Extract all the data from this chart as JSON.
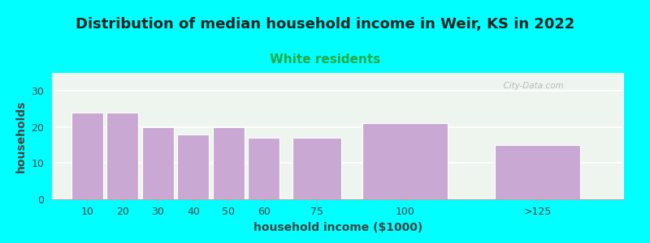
{
  "title": "Distribution of median household income in Weir, KS in 2022",
  "subtitle": "White residents",
  "xlabel": "household income ($1000)",
  "ylabel": "households",
  "categories": [
    "10",
    "20",
    "30",
    "40",
    "50",
    "60",
    "75",
    "100",
    ">125"
  ],
  "values": [
    24,
    24,
    20,
    18,
    20,
    17,
    17,
    21,
    15
  ],
  "bar_color": "#C9A8D4",
  "bg_color": "#00FFFF",
  "plot_bg_color": "#EEF5EE",
  "ylim": [
    0,
    35
  ],
  "yticks": [
    0,
    10,
    20,
    30
  ],
  "title_fontsize": 13,
  "subtitle_fontsize": 11,
  "subtitle_color": "#22AA44",
  "axis_label_fontsize": 10,
  "tick_fontsize": 9,
  "title_color": "#222222",
  "watermark": "  City-Data.com"
}
